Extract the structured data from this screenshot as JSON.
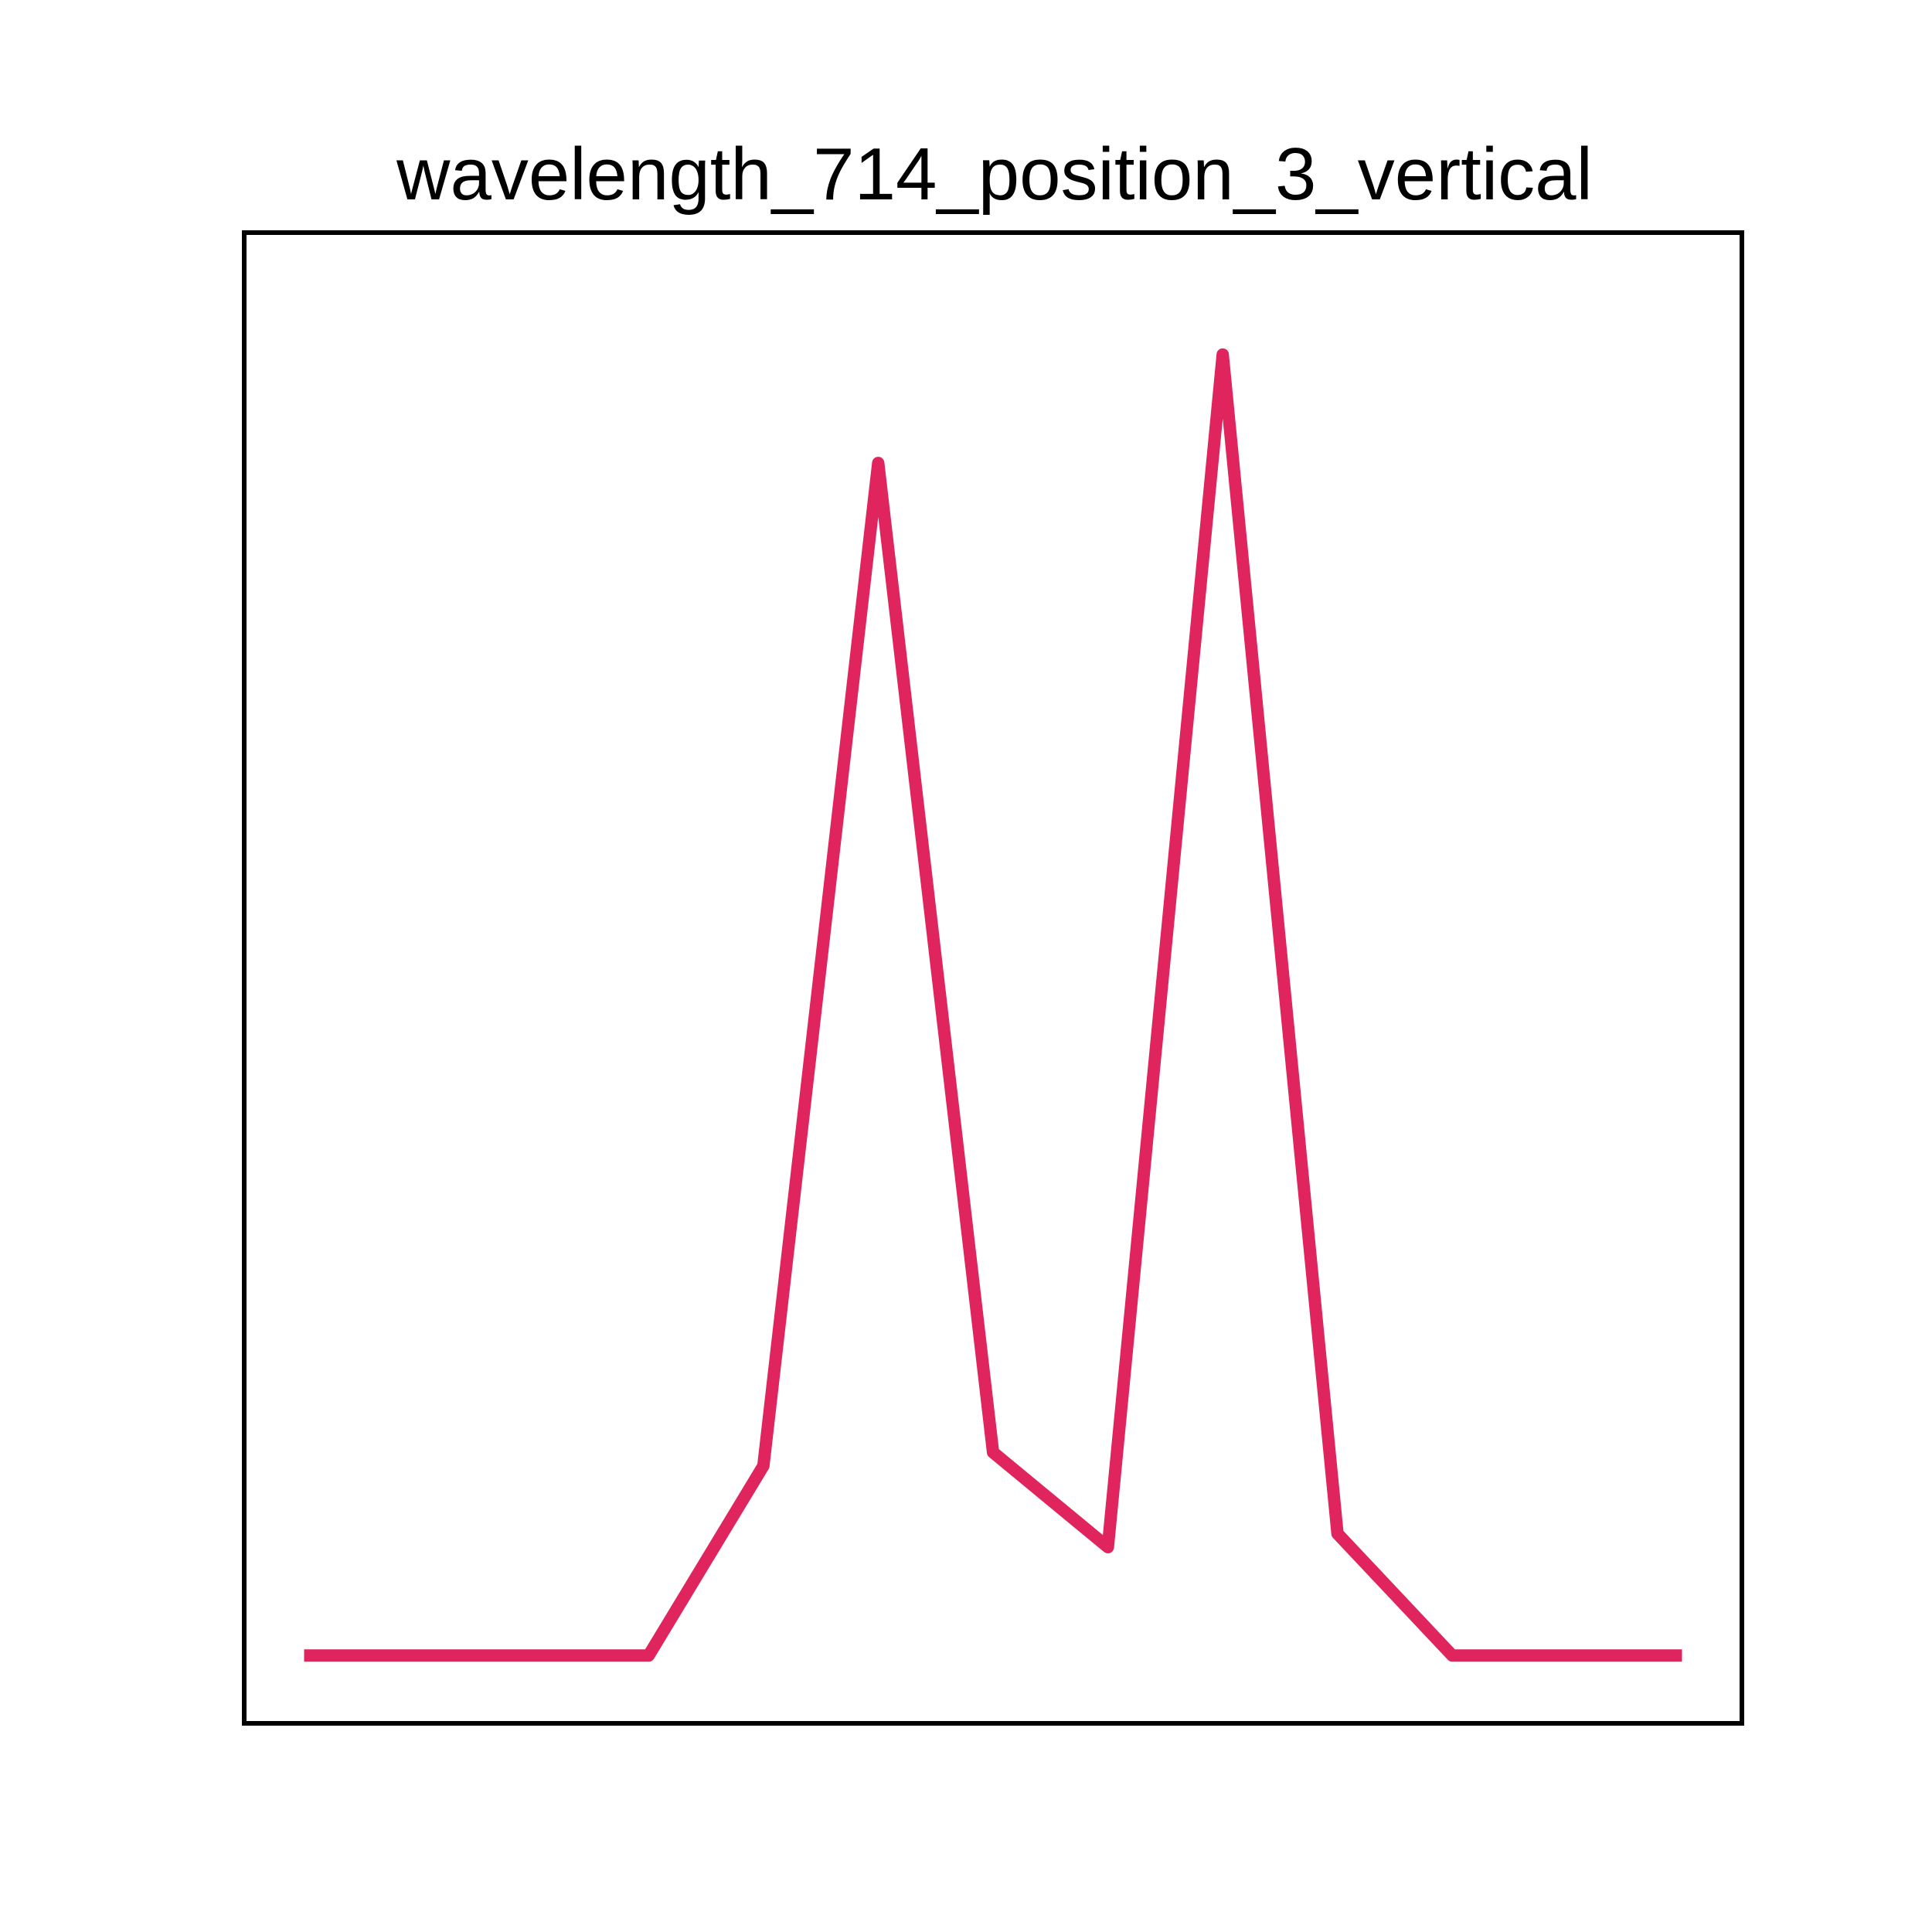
{
  "chart_data": {
    "type": "line",
    "title": "wavelength_714_position_3_vertical",
    "xlabel": "",
    "ylabel": "",
    "axes_visible": false,
    "grid": false,
    "frame": true,
    "xlim": [
      0,
      12
    ],
    "ylim": [
      -0.05,
      1.05
    ],
    "series": [
      {
        "color": "#E0245E",
        "x": [
          0,
          1,
          2,
          3,
          4,
          5,
          6,
          7,
          8,
          9,
          10,
          11,
          12
        ],
        "y": [
          0.0,
          0.0,
          0.0,
          0.0,
          0.14,
          0.88,
          0.15,
          0.08,
          0.96,
          0.09,
          0.0,
          0.0,
          0.0
        ]
      }
    ]
  }
}
